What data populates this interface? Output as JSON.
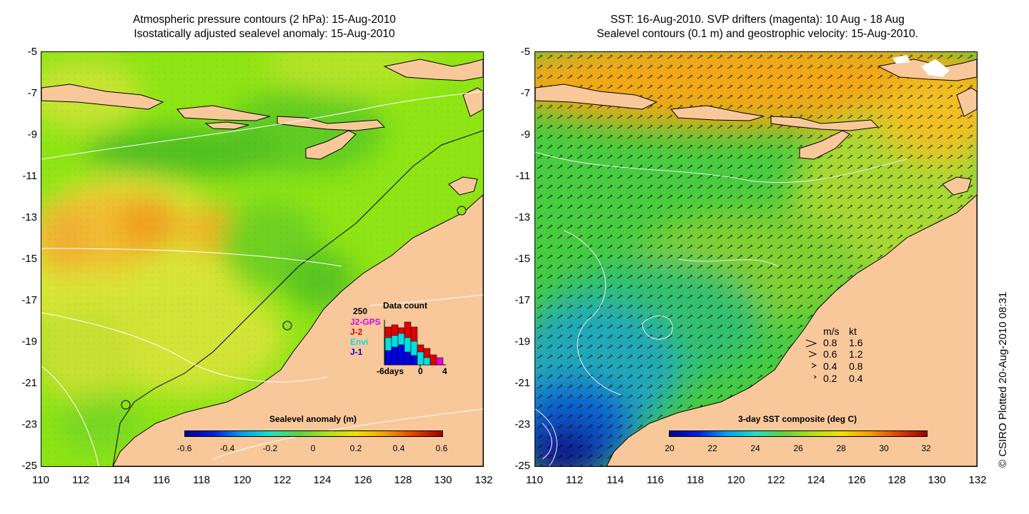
{
  "left_panel": {
    "title_line1": "Atmospheric pressure contours (2 hPa): 15-Aug-2010",
    "title_line2": "Isostatically adjusted sealevel anomaly: 15-Aug-2010",
    "colorbar": {
      "title": "Sealevel anomaly (m)",
      "ticks": [
        "-0.6",
        "-0.4",
        "-0.2",
        "0",
        "0.2",
        "0.4",
        "0.6"
      ],
      "range": [
        -0.6,
        0.6
      ]
    },
    "data_count": {
      "title": "Data count",
      "max_label": "250",
      "legend": [
        {
          "name": "J2-GPS",
          "color": "#e000e0"
        },
        {
          "name": "J-2",
          "color": "#e00000"
        },
        {
          "name": "Envi",
          "color": "#00e0e0"
        },
        {
          "name": "J-1",
          "color": "#0000e0"
        }
      ],
      "x_labels": [
        "-6days",
        "0",
        "4"
      ]
    }
  },
  "right_panel": {
    "title_line1": "SST: 16-Aug-2010. SVP drifters (magenta): 10 Aug - 18 Aug",
    "title_line2": "Sealevel contours (0.1 m) and geostrophic velocity: 15-Aug-2010.",
    "colorbar": {
      "title": "3-day SST composite (deg C)",
      "ticks": [
        "20",
        "22",
        "24",
        "26",
        "28",
        "30",
        "32"
      ],
      "range": [
        20,
        32
      ]
    },
    "velocity_legend": {
      "header_ms": "m/s",
      "header_kt": "kt",
      "rows": [
        {
          "ms": "0.8",
          "kt": "1.6"
        },
        {
          "ms": "0.6",
          "kt": "1.2"
        },
        {
          "ms": "0.4",
          "kt": "0.8"
        },
        {
          "ms": "0.2",
          "kt": "0.4"
        }
      ]
    }
  },
  "axes": {
    "x_ticks": [
      "110",
      "112",
      "114",
      "116",
      "118",
      "120",
      "122",
      "124",
      "126",
      "128",
      "130",
      "132"
    ],
    "y_ticks": [
      "-5",
      "-7",
      "-9",
      "-11",
      "-13",
      "-15",
      "-17",
      "-19",
      "-21",
      "-23",
      "-25"
    ],
    "lon_range": [
      110,
      132
    ],
    "lat_range": [
      -25,
      -5
    ]
  },
  "copyright": "© CSIRO Plotted 20-Aug-2010 08:31",
  "colors": {
    "land": "#f9c89a",
    "sla_green": "#88e010",
    "sla_yellow": "#d6e832",
    "sla_orange": "#f0a020",
    "sst_warm": "#f0a818",
    "sst_green": "#40c840",
    "sst_blue": "#1060d0"
  }
}
